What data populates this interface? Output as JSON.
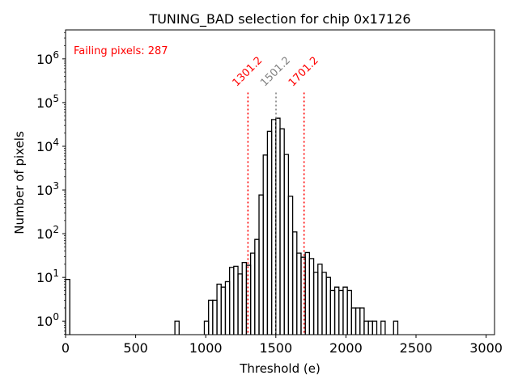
{
  "chart_data": {
    "type": "bar",
    "histtype": "step",
    "title": "TUNING_BAD selection for chip 0x17126",
    "xlabel": "Threshold (e)",
    "ylabel": "Number of pixels",
    "xscale": "linear",
    "yscale": "log",
    "xlim": [
      0,
      3060
    ],
    "ylim": [
      0.49,
      4600000
    ],
    "xticks": [
      0,
      500,
      1000,
      1500,
      2000,
      2500,
      3000
    ],
    "xtick_labels": [
      "0",
      "500",
      "1000",
      "1500",
      "2000",
      "2500",
      "3000"
    ],
    "yticks": [
      1,
      10,
      100,
      1000,
      10000,
      100000,
      1000000
    ],
    "ytick_labels": [
      {
        "base": "10",
        "exp": "0"
      },
      {
        "base": "10",
        "exp": "1"
      },
      {
        "base": "10",
        "exp": "2"
      },
      {
        "base": "10",
        "exp": "3"
      },
      {
        "base": "10",
        "exp": "4"
      },
      {
        "base": "10",
        "exp": "5"
      },
      {
        "base": "10",
        "exp": "6"
      }
    ],
    "bin_width": 30,
    "bins": [
      {
        "x0": 0,
        "value": 9
      },
      {
        "x0": 780,
        "value": 1
      },
      {
        "x0": 990,
        "value": 1
      },
      {
        "x0": 1020,
        "value": 3
      },
      {
        "x0": 1050,
        "value": 3
      },
      {
        "x0": 1080,
        "value": 7
      },
      {
        "x0": 1110,
        "value": 6
      },
      {
        "x0": 1140,
        "value": 8
      },
      {
        "x0": 1170,
        "value": 17
      },
      {
        "x0": 1200,
        "value": 18
      },
      {
        "x0": 1230,
        "value": 12
      },
      {
        "x0": 1260,
        "value": 22
      },
      {
        "x0": 1290,
        "value": 19
      },
      {
        "x0": 1320,
        "value": 36
      },
      {
        "x0": 1350,
        "value": 74
      },
      {
        "x0": 1380,
        "value": 770
      },
      {
        "x0": 1410,
        "value": 6300
      },
      {
        "x0": 1440,
        "value": 22000
      },
      {
        "x0": 1470,
        "value": 41000
      },
      {
        "x0": 1500,
        "value": 44000
      },
      {
        "x0": 1530,
        "value": 25000
      },
      {
        "x0": 1560,
        "value": 6500
      },
      {
        "x0": 1590,
        "value": 720
      },
      {
        "x0": 1620,
        "value": 110
      },
      {
        "x0": 1650,
        "value": 36
      },
      {
        "x0": 1680,
        "value": 29
      },
      {
        "x0": 1710,
        "value": 37
      },
      {
        "x0": 1740,
        "value": 27
      },
      {
        "x0": 1770,
        "value": 13
      },
      {
        "x0": 1800,
        "value": 20
      },
      {
        "x0": 1830,
        "value": 13
      },
      {
        "x0": 1860,
        "value": 10
      },
      {
        "x0": 1890,
        "value": 5
      },
      {
        "x0": 1920,
        "value": 6
      },
      {
        "x0": 1950,
        "value": 5
      },
      {
        "x0": 1980,
        "value": 6
      },
      {
        "x0": 2010,
        "value": 5
      },
      {
        "x0": 2040,
        "value": 2
      },
      {
        "x0": 2070,
        "value": 2
      },
      {
        "x0": 2100,
        "value": 2
      },
      {
        "x0": 2130,
        "value": 1
      },
      {
        "x0": 2160,
        "value": 1
      },
      {
        "x0": 2190,
        "value": 1
      },
      {
        "x0": 2250,
        "value": 1
      },
      {
        "x0": 2340,
        "value": 1
      }
    ],
    "vlines": [
      {
        "x": 1301.2,
        "label": "1301.2",
        "color": "#ff0000",
        "y_top": 170000
      },
      {
        "x": 1501.2,
        "label": "1501.2",
        "color": "#808080",
        "y_top": 170000
      },
      {
        "x": 1701.2,
        "label": "1701.2",
        "color": "#ff0000",
        "y_top": 170000
      }
    ],
    "annotation": {
      "text": "Failing pixels: 287",
      "color": "#ff0000",
      "placement": "top-left"
    },
    "grid": false,
    "legend": null,
    "line_color": "#000000"
  }
}
